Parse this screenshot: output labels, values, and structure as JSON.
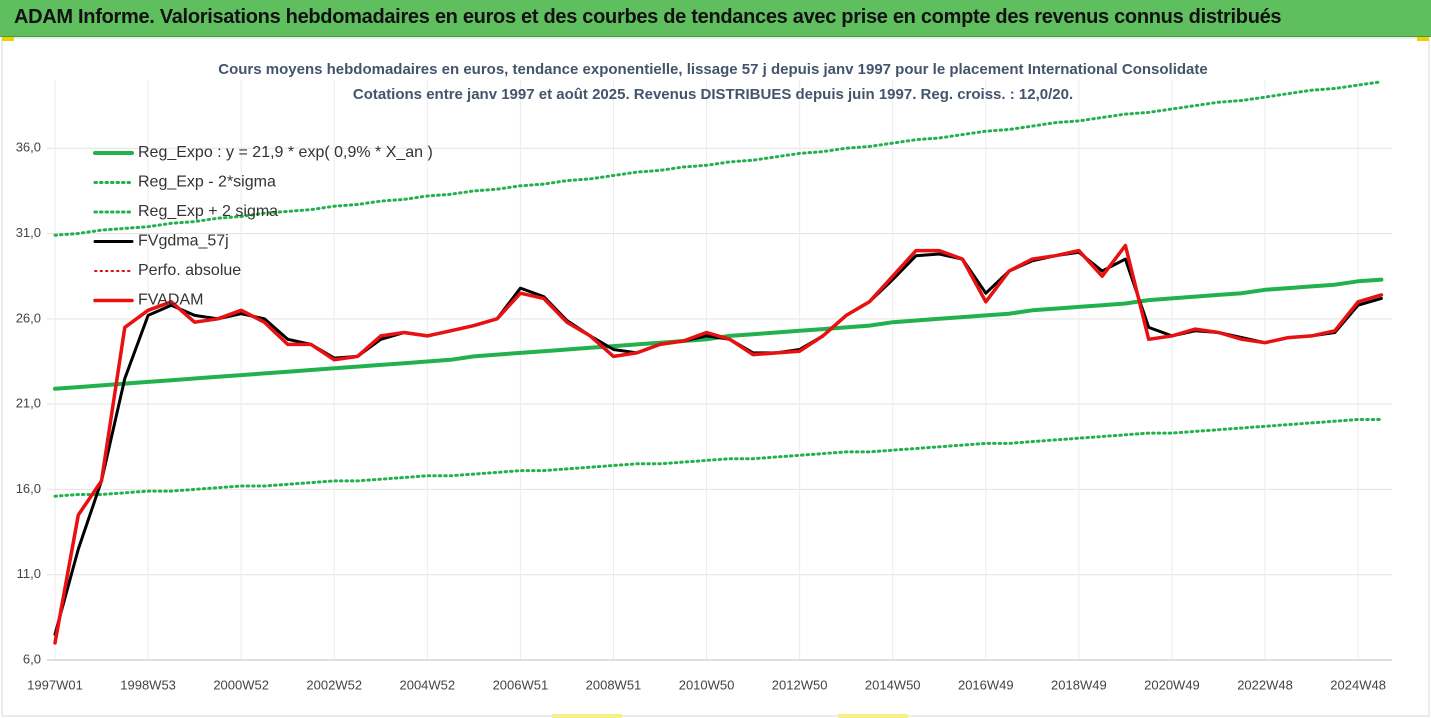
{
  "header": {
    "title": "ADAM Informe. Valorisations hebdomadaires en euros et des courbes de tendances avec prise en compte des revenus connus distribués"
  },
  "chart_data": {
    "type": "line",
    "title": "Cours moyens hebdomadaires en euros, tendance exponentielle, lissage 57 j depuis janv 1997 pour le placement International Consolidate",
    "subtitle": "Cotations entre janv 1997 et août 2025.  Revenus DISTRIBUES depuis juin 1997.  Reg. croiss. : 12,0/20.",
    "categories": [
      "1997W01",
      null,
      null,
      null,
      "1998W53",
      null,
      null,
      null,
      "2000W52",
      null,
      null,
      null,
      "2002W52",
      null,
      null,
      null,
      "2004W52",
      null,
      null,
      null,
      "2006W51",
      null,
      null,
      null,
      "2008W51",
      null,
      null,
      null,
      "2010W50",
      null,
      null,
      null,
      "2012W50",
      null,
      null,
      null,
      "2014W50",
      null,
      null,
      null,
      "2016W49",
      null,
      null,
      null,
      "2018W49",
      null,
      null,
      null,
      "2020W49",
      null,
      null,
      null,
      "2022W48",
      null,
      null,
      null,
      "2024W48",
      null
    ],
    "ylim": [
      6,
      40
    ],
    "yticks": [
      {
        "value": 6,
        "label": "6,0"
      },
      {
        "value": 11,
        "label": "11,0"
      },
      {
        "value": 16,
        "label": "16,0"
      },
      {
        "value": 21,
        "label": "21,0"
      },
      {
        "value": 26,
        "label": "26,0"
      },
      {
        "value": 31,
        "label": "31,0"
      },
      {
        "value": 36,
        "label": "36,0"
      }
    ],
    "grid": true,
    "legend": "top-left",
    "series": [
      {
        "name": "Reg_Expo : y = 21,9 * exp( 0,9% *  X_an )",
        "color": "#22b14c",
        "line_style": "solid",
        "line_width": 4,
        "values": [
          21.9,
          22.0,
          22.1,
          22.2,
          22.3,
          22.4,
          22.5,
          22.6,
          22.7,
          22.8,
          22.9,
          23.0,
          23.1,
          23.2,
          23.3,
          23.4,
          23.5,
          23.6,
          23.8,
          23.9,
          24.0,
          24.1,
          24.2,
          24.3,
          24.4,
          24.5,
          24.6,
          24.7,
          24.8,
          25.0,
          25.1,
          25.2,
          25.3,
          25.4,
          25.5,
          25.6,
          25.8,
          25.9,
          26.0,
          26.1,
          26.2,
          26.3,
          26.5,
          26.6,
          26.7,
          26.8,
          26.9,
          27.1,
          27.2,
          27.3,
          27.4,
          27.5,
          27.7,
          27.8,
          27.9,
          28.0,
          28.2,
          28.3
        ]
      },
      {
        "name": "Reg_Exp - 2*sigma",
        "color": "#22b14c",
        "line_style": "dotted",
        "line_width": 3,
        "values": [
          15.6,
          15.7,
          15.7,
          15.8,
          15.9,
          15.9,
          16.0,
          16.1,
          16.2,
          16.2,
          16.3,
          16.4,
          16.5,
          16.5,
          16.6,
          16.7,
          16.8,
          16.8,
          16.9,
          17.0,
          17.1,
          17.1,
          17.2,
          17.3,
          17.4,
          17.5,
          17.5,
          17.6,
          17.7,
          17.8,
          17.8,
          17.9,
          18.0,
          18.1,
          18.2,
          18.2,
          18.3,
          18.4,
          18.5,
          18.6,
          18.7,
          18.7,
          18.8,
          18.9,
          19.0,
          19.1,
          19.2,
          19.3,
          19.3,
          19.4,
          19.5,
          19.6,
          19.7,
          19.8,
          19.9,
          20.0,
          20.1,
          20.1
        ]
      },
      {
        "name": "Reg_Exp + 2 sigma",
        "color": "#22b14c",
        "line_style": "dotted",
        "line_width": 3,
        "values": [
          30.9,
          31.0,
          31.2,
          31.3,
          31.4,
          31.6,
          31.7,
          31.9,
          32.0,
          32.2,
          32.3,
          32.4,
          32.6,
          32.7,
          32.9,
          33.0,
          33.2,
          33.3,
          33.5,
          33.6,
          33.8,
          33.9,
          34.1,
          34.2,
          34.4,
          34.6,
          34.7,
          34.9,
          35.0,
          35.2,
          35.3,
          35.5,
          35.7,
          35.8,
          36.0,
          36.1,
          36.3,
          36.5,
          36.6,
          36.8,
          37.0,
          37.1,
          37.3,
          37.5,
          37.6,
          37.8,
          38.0,
          38.1,
          38.3,
          38.5,
          38.7,
          38.8,
          39.0,
          39.2,
          39.4,
          39.5,
          39.7,
          39.9
        ]
      },
      {
        "name": "FVgdma_57j",
        "color": "#000000",
        "line_style": "solid",
        "line_width": 3,
        "values": [
          7.5,
          12.5,
          16.5,
          22.5,
          26.2,
          26.8,
          26.2,
          26.0,
          26.3,
          26.0,
          24.8,
          24.5,
          23.7,
          23.8,
          24.8,
          25.2,
          25.0,
          25.3,
          25.6,
          26.0,
          27.8,
          27.3,
          25.9,
          25.0,
          24.2,
          24.0,
          24.5,
          24.7,
          25.0,
          24.8,
          24.0,
          24.0,
          24.2,
          25.0,
          26.2,
          27.0,
          28.3,
          29.7,
          29.8,
          29.5,
          27.5,
          28.8,
          29.4,
          29.7,
          29.9,
          28.8,
          29.5,
          25.5,
          25.0,
          25.3,
          25.2,
          24.9,
          24.6,
          24.9,
          25.0,
          25.2,
          26.8,
          27.2
        ]
      },
      {
        "name": "Perfo. absolue",
        "color": "#e01010",
        "line_style": "dotted",
        "line_width": 2,
        "values": [
          null,
          null,
          null,
          null,
          null,
          null,
          null,
          null,
          null,
          null,
          null,
          null,
          null,
          null,
          null,
          null,
          null,
          null,
          null,
          null,
          null,
          null,
          null,
          null,
          null,
          null,
          null,
          null,
          null,
          null,
          null,
          null,
          null,
          null,
          null,
          null,
          null,
          null,
          null,
          null,
          null,
          null,
          null,
          null,
          null,
          null,
          null,
          null,
          null,
          null,
          null,
          null,
          null,
          null,
          null,
          null,
          null,
          null
        ]
      },
      {
        "name": "FVADAM",
        "color": "#e81010",
        "line_style": "solid",
        "line_width": 3.5,
        "values": [
          7.0,
          14.5,
          16.5,
          25.5,
          26.5,
          27.0,
          25.8,
          26.0,
          26.5,
          25.8,
          24.5,
          24.5,
          23.6,
          23.8,
          25.0,
          25.2,
          25.0,
          25.3,
          25.6,
          26.0,
          27.5,
          27.2,
          25.8,
          25.0,
          23.8,
          24.0,
          24.5,
          24.7,
          25.2,
          24.8,
          23.9,
          24.0,
          24.1,
          25.0,
          26.2,
          27.0,
          28.5,
          30.0,
          30.0,
          29.5,
          27.0,
          28.8,
          29.5,
          29.7,
          30.0,
          28.5,
          30.3,
          24.8,
          25.0,
          25.4,
          25.2,
          24.8,
          24.6,
          24.9,
          25.0,
          25.3,
          27.0,
          27.4
        ]
      }
    ]
  }
}
